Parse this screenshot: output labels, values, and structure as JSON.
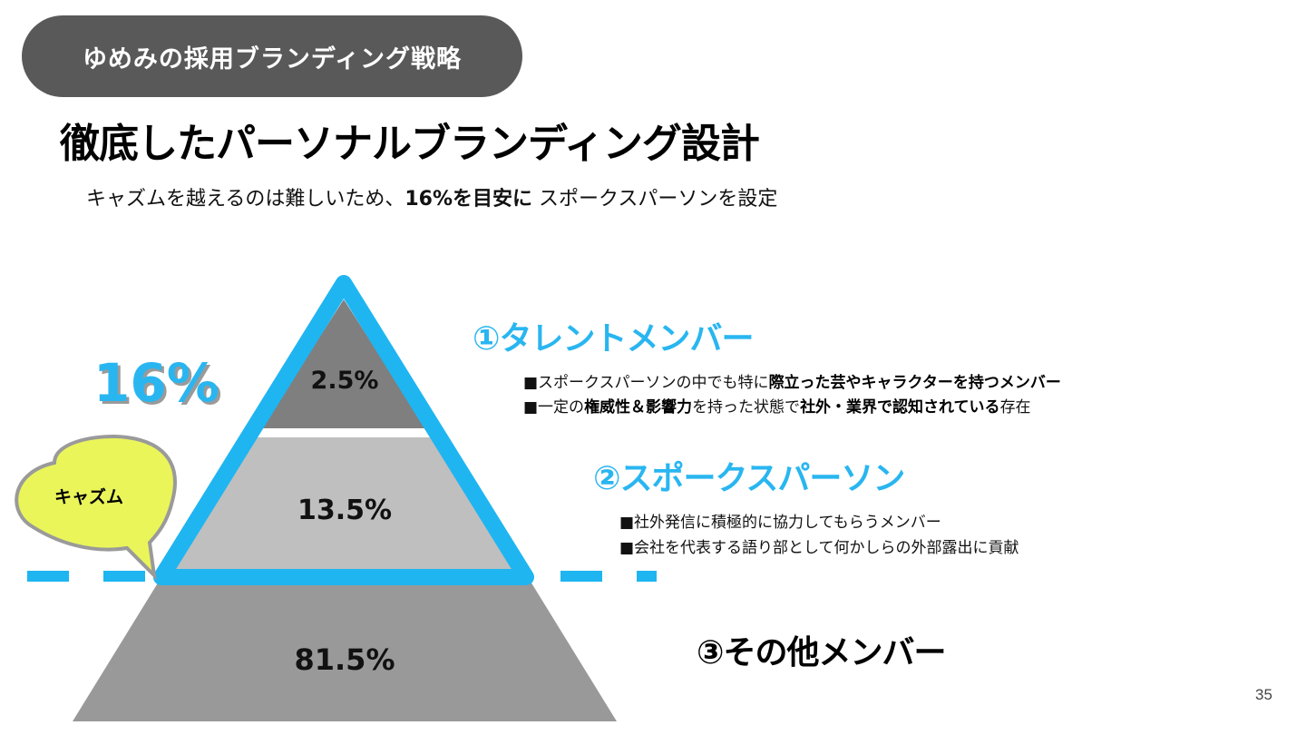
{
  "header": {
    "pill_text": "ゆめみの採用ブランディング戦略"
  },
  "title": "徹底したパーソナルブランディング設計",
  "subtitle": {
    "pre": "キャズムを越えるのは難しいため、",
    "bold": "16%を目安に",
    "post": " スポークスパーソンを設定"
  },
  "pyramid": {
    "total_label": "16%",
    "chasm_label": "キャズム",
    "tiers": [
      {
        "label": "2.5%",
        "value": 2.5,
        "fill": "#7f7f7f"
      },
      {
        "label": "13.5%",
        "value": 13.5,
        "fill": "#bfbfbf"
      },
      {
        "label": "81.5%",
        "value": 81.5,
        "fill": "#999999"
      }
    ],
    "outline_color": "#1fb5f1",
    "bubble_color": "#eaf55a"
  },
  "sections": {
    "talent": {
      "heading": "①タレントメンバー",
      "bullets": [
        {
          "pre": "■スポークスパーソンの中でも特に",
          "bold": "際立った芸やキャラクターを持つメンバー",
          "post": ""
        },
        {
          "pre": "■一定の",
          "bold": "権威性＆影響力",
          "mid": "を持った状態で",
          "bold2": "社外・業界で認知されている",
          "post": "存在"
        }
      ]
    },
    "spokes": {
      "heading": "②スポークスパーソン",
      "bullets": [
        "■社外発信に積極的に協力してもらうメンバー",
        "■会社を代表する語り部として何かしらの外部露出に貢献"
      ]
    },
    "others": {
      "heading": "③その他メンバー"
    }
  },
  "page_number": "35"
}
